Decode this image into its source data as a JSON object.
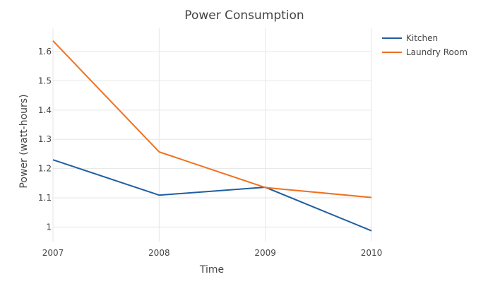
{
  "chart_data": {
    "type": "line",
    "title": "Power Consumption",
    "xlabel": "Time",
    "ylabel": "Power (watt-hours)",
    "x": [
      "2007",
      "2008",
      "2009",
      "2010"
    ],
    "xlim": [
      2007,
      2010
    ],
    "ylim": [
      0.95,
      1.68
    ],
    "yticks": [
      "1",
      "1.1",
      "1.2",
      "1.3",
      "1.4",
      "1.5",
      "1.6"
    ],
    "grid": true,
    "legend_position": "top-right",
    "series": [
      {
        "name": "Kitchen",
        "color": "#1f5f9f",
        "values": [
          1.23,
          1.109,
          1.136,
          0.987
        ]
      },
      {
        "name": "Laundry Room",
        "color": "#f07020",
        "values": [
          1.637,
          1.257,
          1.135,
          1.101
        ]
      }
    ]
  }
}
